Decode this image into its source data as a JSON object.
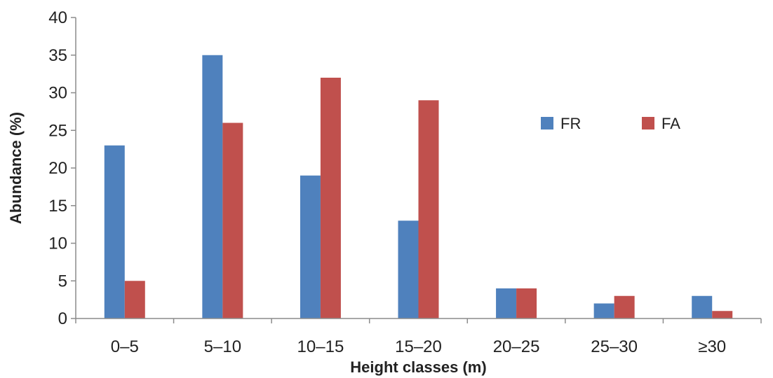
{
  "chart_data": {
    "type": "bar",
    "title": "",
    "xlabel": "Height classes (m)",
    "ylabel": "Abundance (%)",
    "categories": [
      "0–5",
      "5–10",
      "10–15",
      "15–20",
      "20–25",
      "25–30",
      "≥30"
    ],
    "series": [
      {
        "name": "FR",
        "color": "#4f81bd",
        "values": [
          23,
          35,
          19,
          13,
          4,
          2,
          3
        ]
      },
      {
        "name": "FA",
        "color": "#c0504d",
        "values": [
          5,
          26,
          32,
          29,
          4,
          3,
          1
        ]
      }
    ],
    "ylim": [
      0,
      40
    ],
    "yticks": [
      0,
      5,
      10,
      15,
      20,
      25,
      30,
      35,
      40
    ],
    "grid": false,
    "legend_position": "right"
  }
}
